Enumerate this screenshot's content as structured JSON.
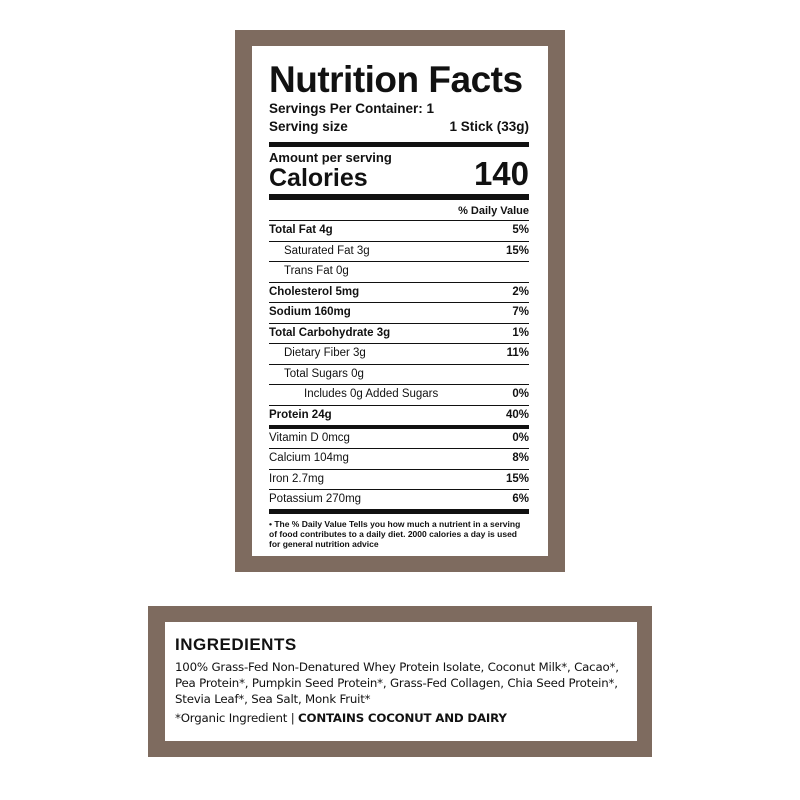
{
  "nutrition": {
    "title": "Nutrition Facts",
    "servings_per_container": "Servings Per Container: 1",
    "serving_size_label": "Serving size",
    "serving_size_value": "1 Stick (33g)",
    "amount_per_serving": "Amount per serving",
    "calories_label": "Calories",
    "calories_value": "140",
    "daily_value_header": "% Daily Value",
    "rows": [
      {
        "name": "Total Fat 4g",
        "dv": "5%"
      },
      {
        "name": "Saturated Fat 3g",
        "dv": "15%"
      },
      {
        "name": "Trans Fat 0g",
        "dv": ""
      },
      {
        "name": "Cholesterol 5mg",
        "dv": "2%"
      },
      {
        "name": "Sodium 160mg",
        "dv": "7%"
      },
      {
        "name": "Total Carbohydrate 3g",
        "dv": "1%"
      },
      {
        "name": "Dietary Fiber 3g",
        "dv": "11%"
      },
      {
        "name": "Total Sugars 0g",
        "dv": ""
      },
      {
        "name": "Includes 0g Added Sugars",
        "dv": "0%"
      },
      {
        "name": "Protein 24g",
        "dv": "40%"
      },
      {
        "name": "Vitamin D 0mcg",
        "dv": "0%"
      },
      {
        "name": "Calcium 104mg",
        "dv": "8%"
      },
      {
        "name": "Iron 2.7mg",
        "dv": "15%"
      },
      {
        "name": "Potassium 270mg",
        "dv": "6%"
      }
    ],
    "footnote": "• The % Daily Value Tells you how much a nutrient in a serving of food contributes to a daily diet. 2000 calories a day is used for general nutrition advice"
  },
  "ingredients": {
    "heading": "INGREDIENTS",
    "text": "100% Grass-Fed Non-Denatured Whey Protein Isolate, Coconut Milk*, Cacao*, Pea Protein*, Pumpkin Seed Protein*, Grass-Fed Collagen, Chia Seed Protein*, Stevia Leaf*, Sea Salt, Monk Fruit*",
    "organic_note": "*Organic Ingredient | ",
    "allergen": "CONTAINS COCONUT AND DAIRY"
  },
  "colors": {
    "frame": "#7e6b5f"
  }
}
